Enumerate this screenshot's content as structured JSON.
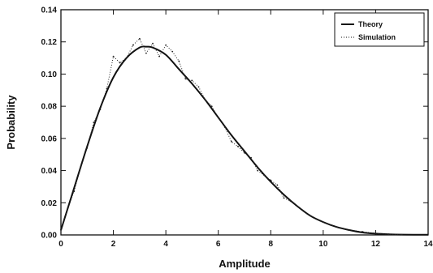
{
  "chart_data": {
    "type": "line",
    "xlabel": "Amplitude",
    "ylabel": "Probability",
    "xlim": [
      0,
      14
    ],
    "ylim": [
      0,
      0.14
    ],
    "x_ticks": [
      "0",
      "2",
      "4",
      "6",
      "8",
      "10",
      "12",
      "14"
    ],
    "y_ticks": [
      "0.00",
      "0.02",
      "0.04",
      "0.06",
      "0.08",
      "0.10",
      "0.12",
      "0.14"
    ],
    "legend_position": "top-right",
    "grid": false,
    "series": [
      {
        "name": "Theory",
        "style": "solid",
        "x": [
          0,
          0.5,
          1,
          1.5,
          2,
          2.5,
          3,
          3.25,
          3.5,
          4,
          4.5,
          5,
          5.5,
          6,
          6.5,
          7,
          7.5,
          8,
          8.5,
          9,
          9.5,
          10,
          10.5,
          11,
          11.5,
          12,
          12.5,
          13,
          14
        ],
        "y": [
          0.003,
          0.029,
          0.055,
          0.079,
          0.098,
          0.11,
          0.1165,
          0.117,
          0.1165,
          0.112,
          0.103,
          0.094,
          0.084,
          0.073,
          0.062,
          0.052,
          0.042,
          0.033,
          0.025,
          0.018,
          0.012,
          0.008,
          0.005,
          0.003,
          0.0015,
          0.0008,
          0.0004,
          0.0002,
          0.0001
        ]
      },
      {
        "name": "Simulation",
        "style": "dotted",
        "x": [
          0,
          0.25,
          0.5,
          0.75,
          1,
          1.25,
          1.5,
          1.75,
          2,
          2.25,
          2.5,
          2.75,
          3,
          3.25,
          3.5,
          3.75,
          4,
          4.25,
          4.5,
          4.75,
          5,
          5.25,
          5.5,
          5.75,
          6,
          6.25,
          6.5,
          6.75,
          7,
          7.25,
          7.5,
          7.75,
          8,
          8.25,
          8.5,
          8.75,
          9,
          9.5,
          10,
          10.5,
          11,
          11.5,
          12,
          12.5,
          13
        ],
        "y": [
          0.003,
          0.016,
          0.027,
          0.042,
          0.054,
          0.07,
          0.078,
          0.091,
          0.111,
          0.107,
          0.11,
          0.118,
          0.122,
          0.113,
          0.119,
          0.111,
          0.118,
          0.114,
          0.108,
          0.097,
          0.096,
          0.092,
          0.084,
          0.08,
          0.073,
          0.067,
          0.058,
          0.055,
          0.051,
          0.048,
          0.04,
          0.037,
          0.034,
          0.031,
          0.023,
          0.021,
          0.018,
          0.012,
          0.008,
          0.005,
          0.003,
          0.002,
          0.001,
          0.0005,
          0.0002
        ]
      }
    ]
  }
}
